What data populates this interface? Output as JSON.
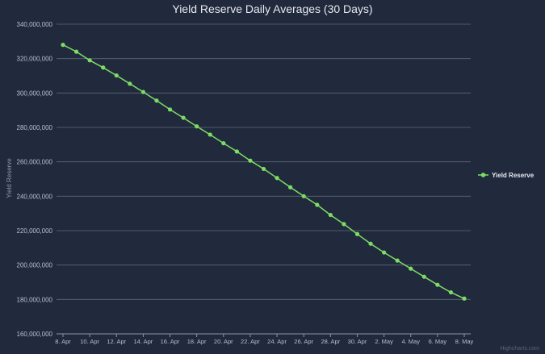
{
  "chart_data": {
    "type": "line",
    "title": "Yield Reserve Daily Averages (30 Days)",
    "xlabel": "",
    "ylabel": "Yield Reserve",
    "ylim": [
      160000000,
      340000000
    ],
    "yticks": [
      160000000,
      180000000,
      200000000,
      220000000,
      240000000,
      260000000,
      280000000,
      300000000,
      320000000,
      340000000
    ],
    "ytick_labels": [
      "160,000,000",
      "180,000,000",
      "200,000,000",
      "220,000,000",
      "240,000,000",
      "260,000,000",
      "280,000,000",
      "300,000,000",
      "320,000,000",
      "340,000,000"
    ],
    "x": [
      "8. Apr",
      "9. Apr",
      "10. Apr",
      "11. Apr",
      "12. Apr",
      "13. Apr",
      "14. Apr",
      "15. Apr",
      "16. Apr",
      "17. Apr",
      "18. Apr",
      "19. Apr",
      "20. Apr",
      "21. Apr",
      "22. Apr",
      "23. Apr",
      "24. Apr",
      "25. Apr",
      "26. Apr",
      "27. Apr",
      "28. Apr",
      "29. Apr",
      "30. Apr",
      "1. May",
      "2. May",
      "3. May",
      "4. May",
      "5. May",
      "6. May",
      "7. May",
      "8. May"
    ],
    "xtick_labels": [
      "8. Apr",
      "10. Apr",
      "12. Apr",
      "14. Apr",
      "16. Apr",
      "18. Apr",
      "20. Apr",
      "22. Apr",
      "24. Apr",
      "26. Apr",
      "28. Apr",
      "30. Apr",
      "2. May",
      "4. May",
      "6. May",
      "8. May"
    ],
    "series": [
      {
        "name": "Yield Reserve",
        "color": "#7ddc63",
        "values": [
          328000000,
          324000000,
          319000000,
          314800000,
          310200000,
          305400000,
          300600000,
          295600000,
          290400000,
          285600000,
          280600000,
          275800000,
          270800000,
          266000000,
          260700000,
          255900000,
          250600000,
          245200000,
          240000000,
          235000000,
          229100000,
          223800000,
          218000000,
          212400000,
          207300000,
          202600000,
          197900000,
          193200000,
          188500000,
          184100000,
          180500000
        ]
      }
    ],
    "grid": true,
    "legend": "right",
    "credits": "Highcharts.com"
  }
}
